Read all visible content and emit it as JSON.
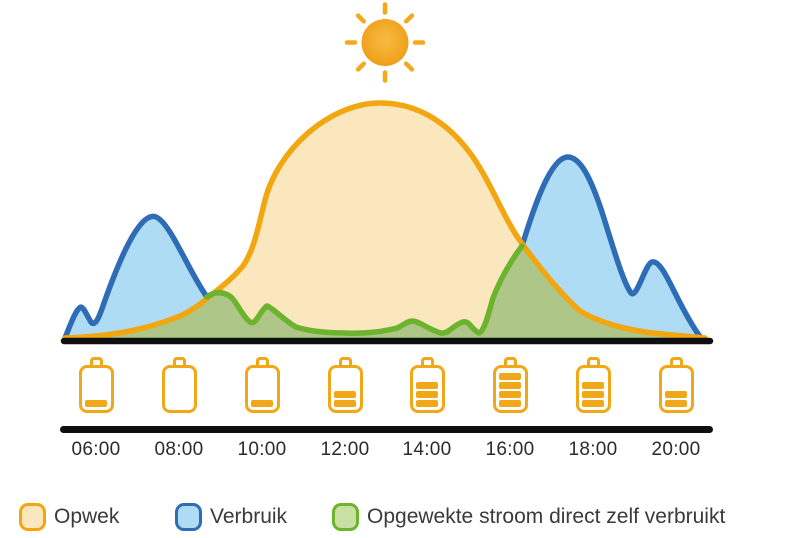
{
  "sun_icon": {
    "color_center": "#F7BC45",
    "color_edge": "#EF9C13",
    "ray_color": "#F5A81C"
  },
  "palette": {
    "opwek_stroke": "#F2A60F",
    "opwek_fill": "#FAE7BE",
    "verbruik_stroke": "#2E6CB5",
    "verbruik_fill": "#ADDCF4",
    "overlap_stroke": "#6CB32E",
    "overlap_fill": "#AEC687",
    "overlap_legend_fill": "#C9E0A5",
    "battery_color": "#F0A818",
    "axis_color": "#0F0F0F",
    "text_color": "#3A3A3B"
  },
  "x_axis": {
    "tick_labels": [
      "06:00",
      "08:00",
      "10:00",
      "12:00",
      "14:00",
      "16:00",
      "18:00",
      "20:00"
    ]
  },
  "batteries": {
    "max_bars": 4,
    "levels": [
      {
        "time": "06:00",
        "bars": 1
      },
      {
        "time": "08:00",
        "bars": 0
      },
      {
        "time": "10:00",
        "bars": 1
      },
      {
        "time": "12:00",
        "bars": 2
      },
      {
        "time": "14:00",
        "bars": 3
      },
      {
        "time": "16:00",
        "bars": 4
      },
      {
        "time": "18:00",
        "bars": 3
      },
      {
        "time": "20:00",
        "bars": 2
      }
    ]
  },
  "legend": {
    "items": [
      {
        "label": "Opwek",
        "fill": "#FAE7BE",
        "border": "#F2A60F"
      },
      {
        "label": "Verbruik",
        "fill": "#ADDCF4",
        "border": "#2E6CB5"
      },
      {
        "label": "Opgewekte stroom direct zelf verbruikt",
        "fill": "#C9E0A5",
        "border": "#6CB32E"
      }
    ]
  },
  "chart_data": {
    "type": "area",
    "x": [
      "06:00",
      "07:00",
      "08:00",
      "09:00",
      "10:00",
      "11:00",
      "12:00",
      "13:00",
      "14:00",
      "15:00",
      "16:00",
      "17:00",
      "18:00",
      "19:00",
      "20:00"
    ],
    "series": [
      {
        "name": "Opwek",
        "values": [
          1,
          3,
          8,
          22,
          55,
          85,
          98,
          100,
          93,
          72,
          50,
          20,
          8,
          3,
          1
        ]
      },
      {
        "name": "Verbruik",
        "values": [
          8,
          37,
          35,
          17,
          13,
          4,
          3,
          4,
          4,
          6,
          25,
          70,
          55,
          21,
          16
        ]
      },
      {
        "name": "Opgewekte stroom direct zelf verbruikt",
        "values": [
          1,
          3,
          8,
          17,
          13,
          4,
          3,
          4,
          4,
          6,
          25,
          20,
          8,
          3,
          1
        ]
      }
    ],
    "peaks": {
      "verbruik_morning": {
        "time": "07:30",
        "value": 52
      },
      "verbruik_evening": {
        "time": "17:20",
        "value": 77
      },
      "opwek_midday": {
        "time": "13:00",
        "value": 100
      }
    },
    "title": "",
    "xlabel": "",
    "ylabel": "",
    "ylim": [
      0,
      100
    ],
    "units": "relative (% of max opwek)",
    "grid": false,
    "legend_position": "bottom",
    "annotations": [
      "sun icon above midday generation peak",
      "battery charge icons under baseline: 1,0,1,2,3,4,3,2 of 4 bars at 06:00-20:00"
    ]
  }
}
